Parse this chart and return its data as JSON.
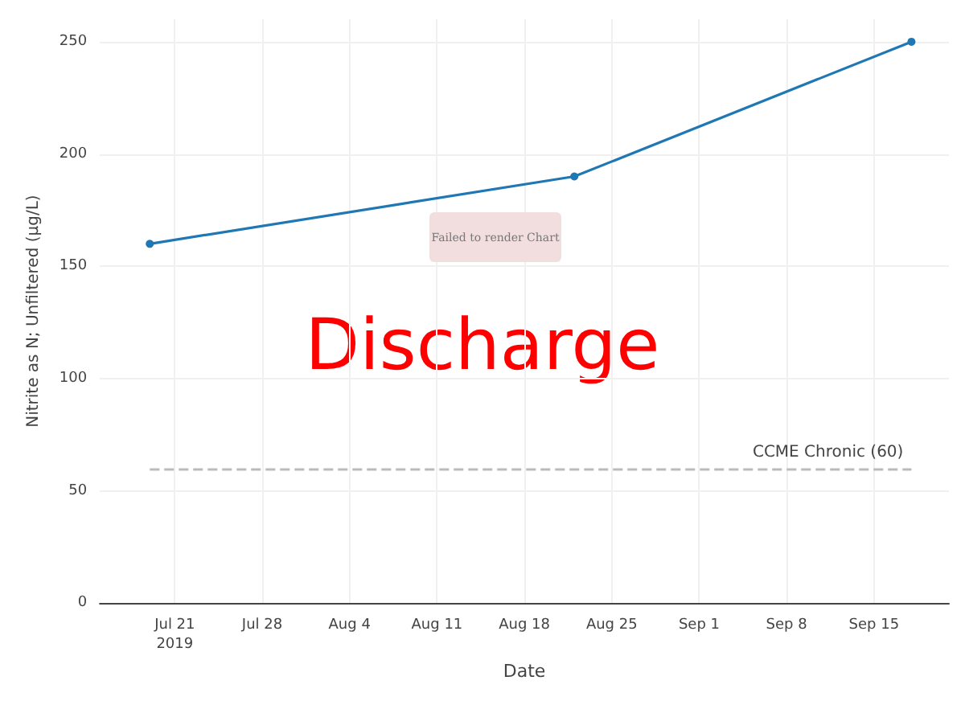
{
  "chart_data": {
    "type": "line",
    "xlabel": "Date",
    "ylabel": "Nitrite as N; Unfiltered (µg/L)",
    "x": [
      "2019-07-19",
      "2019-08-22",
      "2019-09-18"
    ],
    "series": [
      {
        "color": "#1f77b4",
        "values": [
          160,
          190,
          250
        ]
      }
    ],
    "xlim": [
      "2019-07-15",
      "2019-09-21"
    ],
    "xticks": [
      {
        "value": "2019-07-21",
        "label": "Jul 21\n2019"
      },
      {
        "value": "2019-07-28",
        "label": "Jul 28"
      },
      {
        "value": "2019-08-04",
        "label": "Aug 4"
      },
      {
        "value": "2019-08-11",
        "label": "Aug 11"
      },
      {
        "value": "2019-08-18",
        "label": "Aug 18"
      },
      {
        "value": "2019-08-25",
        "label": "Aug 25"
      },
      {
        "value": "2019-09-01",
        "label": "Sep 1"
      },
      {
        "value": "2019-09-08",
        "label": "Sep 8"
      },
      {
        "value": "2019-09-15",
        "label": "Sep 15"
      }
    ],
    "ylim": [
      0,
      260
    ],
    "yticks": [
      0,
      50,
      100,
      150,
      200,
      250
    ],
    "ref_lines": [
      {
        "axis": "y",
        "value": 60,
        "label": "CCME Chronic (60)",
        "color": "#bbbbbb",
        "line_style": "dashed"
      }
    ],
    "annotations": [
      "Discharge",
      "Failed to render Chart"
    ],
    "grid": true,
    "marker": "circle",
    "line_style": "solid"
  }
}
